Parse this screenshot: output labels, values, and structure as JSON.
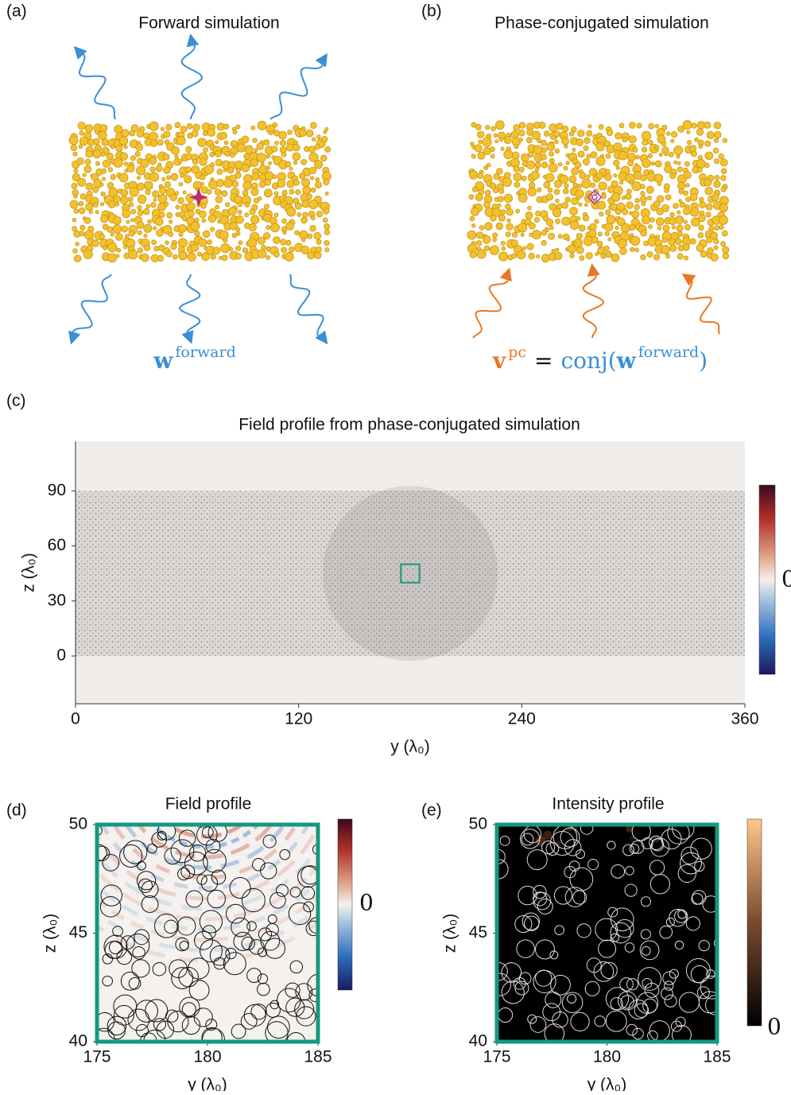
{
  "panels": {
    "a": {
      "label": "(a)",
      "title": "Forward simulation",
      "equation": [
        "w",
        "forward"
      ]
    },
    "b": {
      "label": "(b)",
      "title": "Phase-conjugated simulation",
      "equation": [
        "v",
        "pc",
        "=",
        "conj(",
        "w",
        "forward",
        ")"
      ]
    },
    "c": {
      "label": "(c)",
      "title": "Field profile from phase-conjugated simulation",
      "xlabel": "y (λ₀)",
      "ylabel": "z (λ₀)",
      "xlim": [
        0,
        360
      ],
      "ylim": [
        -26,
        117
      ],
      "xticks": [
        0,
        120,
        240,
        360
      ],
      "yticks": [
        0,
        30,
        60,
        90
      ],
      "colorbar_label": "0"
    },
    "d": {
      "label": "(d)",
      "title": "Field profile",
      "xlabel": "y (λ₀)",
      "ylabel": "z (λ₀)",
      "xlim": [
        175,
        185
      ],
      "ylim": [
        40,
        50
      ],
      "xticks": [
        175,
        180,
        185
      ],
      "yticks": [
        40,
        45,
        50
      ],
      "colorbar_label": "0"
    },
    "e": {
      "label": "(e)",
      "title": "Intensity profile",
      "xlabel": "y (λ₀)",
      "ylabel": "z (λ₀)",
      "xlim": [
        175,
        185
      ],
      "ylim": [
        40,
        50
      ],
      "xticks": [
        175,
        180,
        185
      ],
      "yticks": [
        40,
        45,
        50
      ],
      "colorbar_label": "0"
    }
  }
}
